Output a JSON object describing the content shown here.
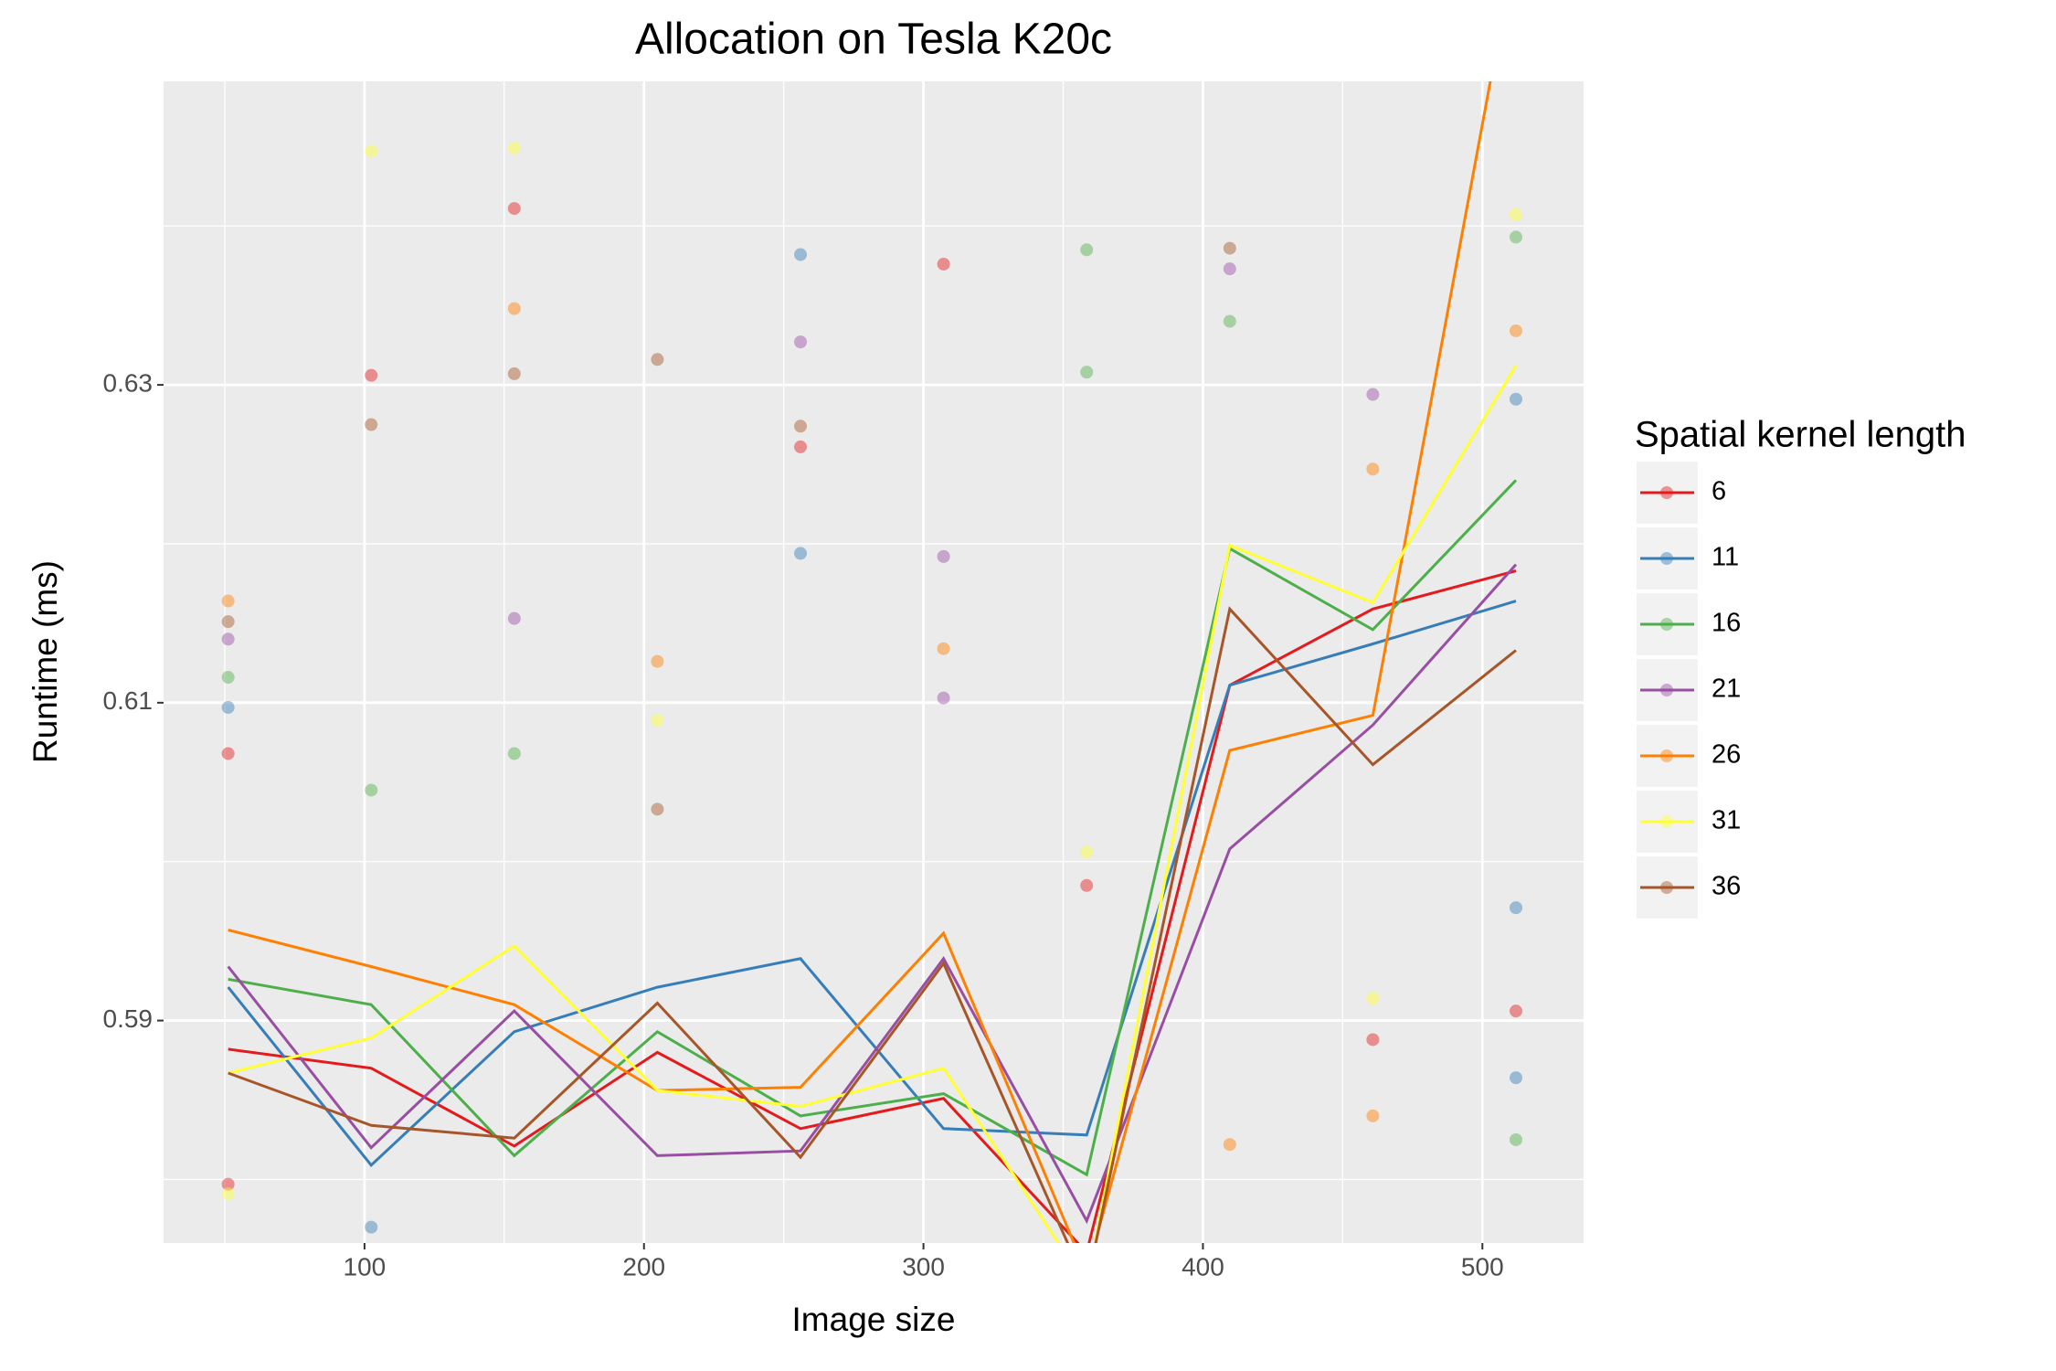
{
  "chart_data": {
    "type": "line-scatter",
    "title": "Allocation on Tesla K20c",
    "x_label": "Image size",
    "y_label": "Runtime (ms)",
    "legend_title": "Spatial kernel length",
    "legend_position": "right",
    "grid": true,
    "xlim": [
      28.1,
      536.2
    ],
    "xticks": [
      100,
      200,
      300,
      400,
      500
    ],
    "xminor": [
      50,
      150,
      250,
      350,
      450
    ],
    "ylim": [
      0.576,
      0.6491
    ],
    "yticks": [
      0.59,
      0.61,
      0.63
    ],
    "yminor": [
      0.58,
      0.6,
      0.62,
      0.64
    ],
    "x": [
      51.2,
      102.4,
      153.6,
      204.8,
      256,
      307.2,
      358.4,
      409.6,
      460.8,
      512
    ],
    "series": [
      {
        "name": "6",
        "color": "#e41a1c",
        "values": [
          0.5882,
          0.587,
          0.5821,
          0.588,
          0.5832,
          0.5851,
          0.5754,
          0.6111,
          0.6159,
          0.6183
        ],
        "points_x": [
          153.6,
          102.4,
          307.2,
          256,
          358.4,
          51.2,
          512,
          460.8,
          51.2
        ],
        "points_y": [
          0.6411,
          0.6306,
          0.6376,
          0.6261,
          0.5985,
          0.6068,
          0.5906,
          0.5888,
          0.5797
        ]
      },
      {
        "name": "11",
        "color": "#377eb8",
        "values": [
          0.5921,
          0.5809,
          0.5893,
          0.5921,
          0.5939,
          0.5832,
          0.5828,
          0.6111,
          0.6137,
          0.6164
        ],
        "points_x": [
          256,
          256,
          51.2,
          512,
          512,
          512,
          102.4
        ],
        "points_y": [
          0.6382,
          0.6194,
          0.6097,
          0.6291,
          0.5971,
          0.5864,
          0.577
        ]
      },
      {
        "name": "16",
        "color": "#4daf4a",
        "values": [
          0.5926,
          0.591,
          0.5815,
          0.5893,
          0.584,
          0.5854,
          0.5803,
          0.6197,
          0.6146,
          0.624
        ],
        "points_x": [
          358.4,
          358.4,
          409.6,
          153.6,
          51.2,
          512,
          512,
          102.4
        ],
        "points_y": [
          0.6385,
          0.6308,
          0.634,
          0.6068,
          0.6116,
          0.6393,
          0.5825,
          0.6045
        ]
      },
      {
        "name": "21",
        "color": "#984ea3",
        "values": [
          0.5934,
          0.582,
          0.5906,
          0.5815,
          0.5818,
          0.5939,
          0.5774,
          0.6008,
          0.6086,
          0.6187
        ],
        "points_x": [
          409.6,
          256,
          153.6,
          307.2,
          307.2,
          460.8,
          51.2
        ],
        "points_y": [
          0.6373,
          0.6327,
          0.6153,
          0.6192,
          0.6103,
          0.6294,
          0.614
        ]
      },
      {
        "name": "26",
        "color": "#ff7f00",
        "values": [
          0.5957,
          0.5934,
          0.591,
          0.5856,
          0.5858,
          0.5955,
          0.5741,
          0.607,
          0.6092,
          0.6578
        ],
        "points_x": [
          153.6,
          204.8,
          307.2,
          460.8,
          512,
          409.6,
          51.2,
          460.8
        ],
        "points_y": [
          0.6348,
          0.6126,
          0.6134,
          0.6247,
          0.6334,
          0.5822,
          0.6164,
          0.584
        ]
      },
      {
        "name": "31",
        "color": "#ffff33",
        "values": [
          0.5867,
          0.5889,
          0.5947,
          0.5856,
          0.5846,
          0.587,
          0.5733,
          0.6199,
          0.6163,
          0.6312
        ],
        "points_x": [
          102.4,
          153.6,
          512,
          358.4,
          460.8,
          51.2,
          204.8
        ],
        "points_y": [
          0.6447,
          0.6449,
          0.6407,
          0.6006,
          0.5914,
          0.5791,
          0.6089
        ]
      },
      {
        "name": "36",
        "color": "#a65628",
        "values": [
          0.5867,
          0.5834,
          0.5826,
          0.5911,
          0.5814,
          0.5936,
          0.5733,
          0.6159,
          0.6061,
          0.6133
        ],
        "points_x": [
          204.8,
          409.6,
          102.4,
          153.6,
          256,
          51.2,
          204.8
        ],
        "points_y": [
          0.6316,
          0.6386,
          0.6275,
          0.6307,
          0.6274,
          0.6151,
          0.6033
        ]
      }
    ]
  }
}
